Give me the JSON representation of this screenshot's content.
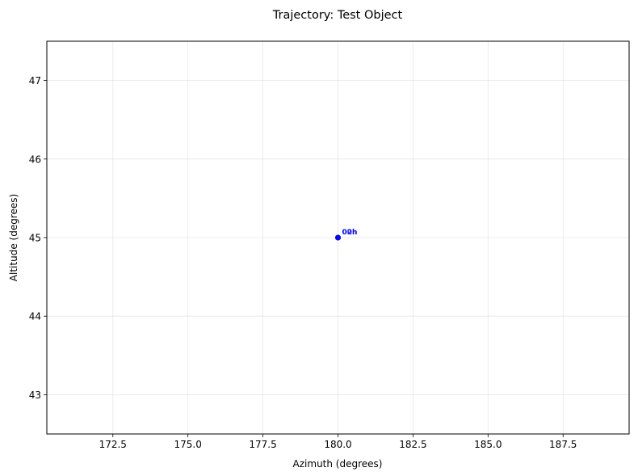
{
  "chart_data": {
    "type": "scatter",
    "title": "Trajectory: Test Object",
    "xlabel": "Azimuth (degrees)",
    "ylabel": "Altitude (degrees)",
    "xlim": [
      170.3,
      189.7
    ],
    "ylim": [
      42.5,
      47.5
    ],
    "x_ticks": [
      172.5,
      175.0,
      177.5,
      180.0,
      182.5,
      185.0,
      187.5
    ],
    "x_tick_labels": [
      "172.5",
      "175.0",
      "177.5",
      "180.0",
      "182.5",
      "185.0",
      "187.5"
    ],
    "y_ticks": [
      43,
      44,
      45,
      46,
      47
    ],
    "y_tick_labels": [
      "43",
      "44",
      "45",
      "46",
      "47"
    ],
    "grid": true,
    "color": "#0000ff",
    "points": [
      {
        "x": 180.0,
        "y": 45.0,
        "label": "00h"
      },
      {
        "x": 180.0,
        "y": 45.0,
        "label": "02h"
      }
    ]
  }
}
